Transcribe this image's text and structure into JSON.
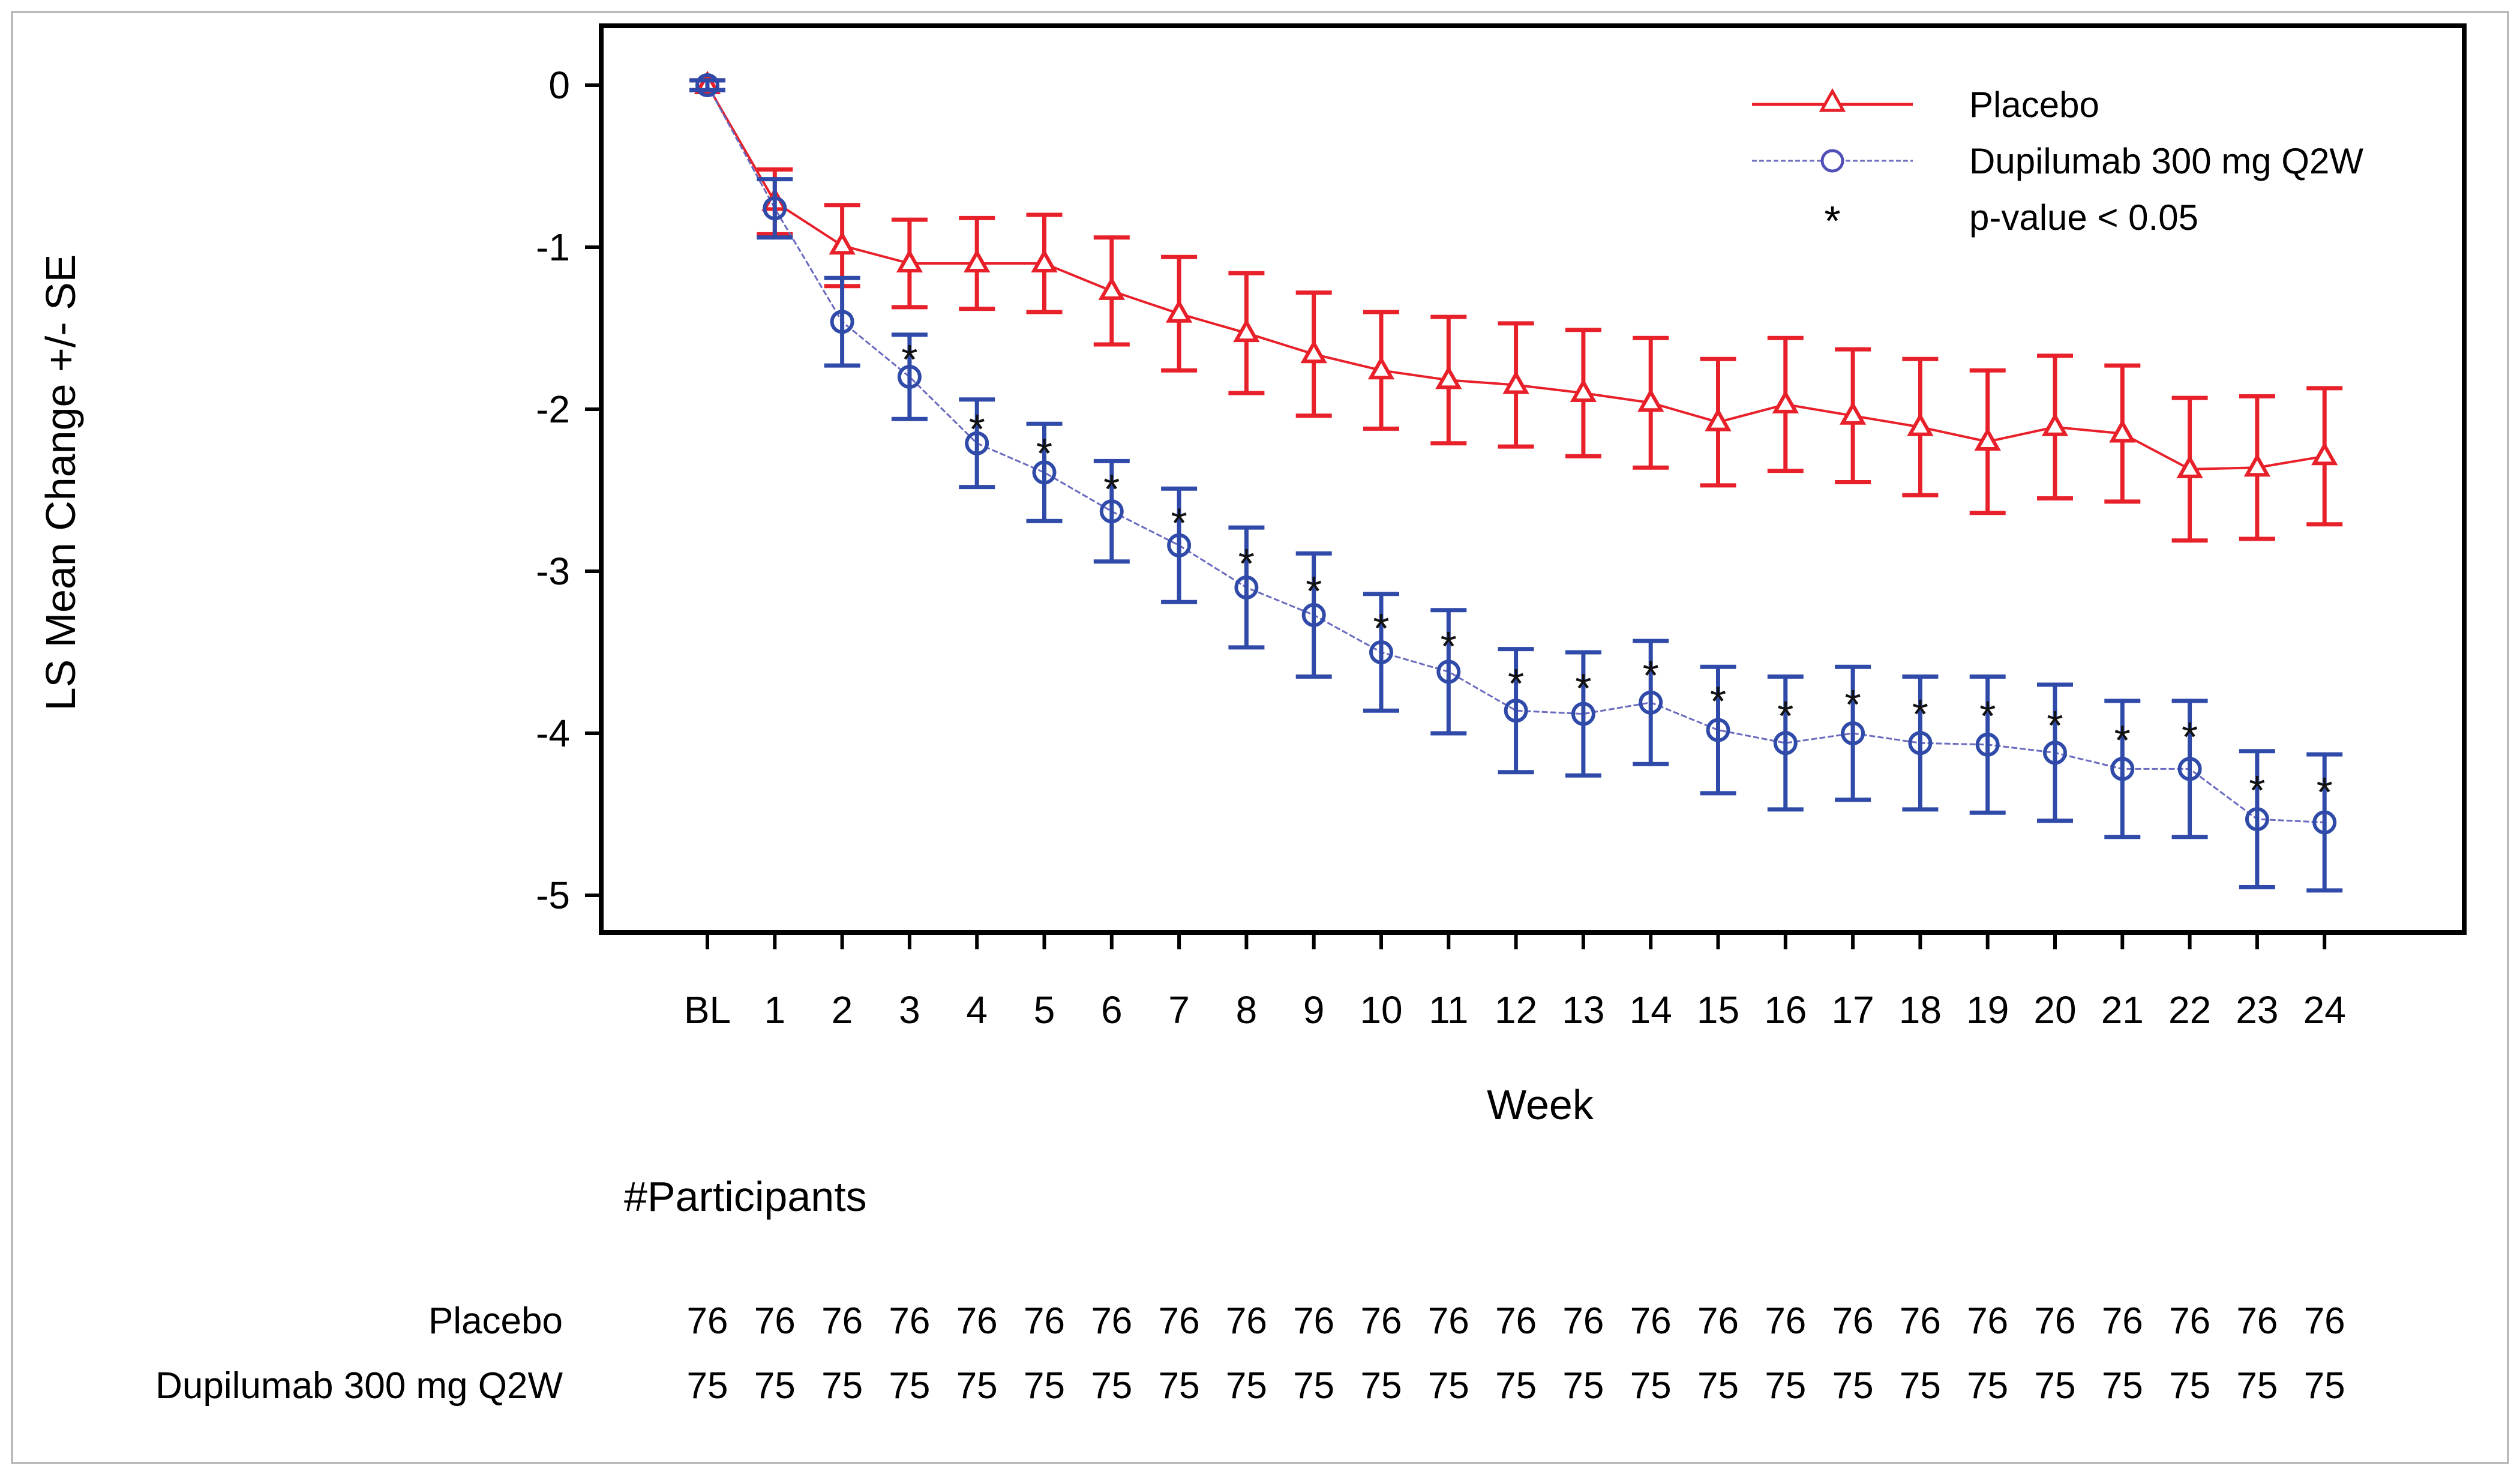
{
  "chart_data": {
    "type": "line",
    "xlabel": "Week",
    "ylabel": "LS Mean Change +/- SE",
    "x_ticks": [
      "BL",
      "1",
      "2",
      "3",
      "4",
      "5",
      "6",
      "7",
      "8",
      "9",
      "10",
      "11",
      "12",
      "13",
      "14",
      "15",
      "16",
      "17",
      "18",
      "19",
      "20",
      "21",
      "22",
      "23",
      "24"
    ],
    "ylim": [
      -5.2,
      0.1
    ],
    "y_ticks": [
      0,
      -1,
      -2,
      -3,
      -4,
      -5
    ],
    "y_tick_labels": [
      "0",
      "-1",
      "-2",
      "-3",
      "-4",
      "-5"
    ],
    "grid": false,
    "legend_position": "top-right",
    "series": [
      {
        "name": "Placebo",
        "color": "#e8202a",
        "marker": "triangle",
        "mean": [
          0,
          -0.72,
          -0.99,
          -1.1,
          -1.1,
          -1.1,
          -1.27,
          -1.41,
          -1.53,
          -1.66,
          -1.76,
          -1.82,
          -1.85,
          -1.9,
          -1.96,
          -2.08,
          -1.97,
          -2.04,
          -2.11,
          -2.2,
          -2.11,
          -2.15,
          -2.37,
          -2.36,
          -2.29
        ],
        "se": [
          0.03,
          0.2,
          0.25,
          0.27,
          0.28,
          0.3,
          0.33,
          0.35,
          0.37,
          0.38,
          0.36,
          0.39,
          0.38,
          0.39,
          0.4,
          0.39,
          0.41,
          0.41,
          0.42,
          0.44,
          0.44,
          0.42,
          0.44,
          0.44,
          0.42
        ]
      },
      {
        "name": "Dupilumab 300 mg Q2W",
        "color": "#2f4aa8",
        "marker": "circle",
        "mean": [
          0,
          -0.76,
          -1.46,
          -1.8,
          -2.21,
          -2.39,
          -2.63,
          -2.84,
          -3.1,
          -3.27,
          -3.5,
          -3.62,
          -3.86,
          -3.88,
          -3.81,
          -3.98,
          -4.06,
          -4.0,
          -4.06,
          -4.07,
          -4.12,
          -4.22,
          -4.22,
          -4.53,
          -4.55
        ],
        "se": [
          0.03,
          0.18,
          0.27,
          0.26,
          0.27,
          0.3,
          0.31,
          0.35,
          0.37,
          0.38,
          0.36,
          0.38,
          0.38,
          0.38,
          0.38,
          0.39,
          0.41,
          0.41,
          0.41,
          0.42,
          0.42,
          0.42,
          0.42,
          0.42,
          0.42
        ]
      }
    ],
    "significance": {
      "label": "p-value < 0.05",
      "weeks": [
        "3",
        "4",
        "5",
        "6",
        "7",
        "8",
        "9",
        "10",
        "11",
        "12",
        "13",
        "14",
        "15",
        "16",
        "17",
        "18",
        "19",
        "20",
        "21",
        "22",
        "23",
        "24"
      ],
      "y": [
        -1.67,
        -2.1,
        -2.25,
        -2.47,
        -2.68,
        -2.93,
        -3.1,
        -3.33,
        -3.44,
        -3.67,
        -3.7,
        -3.62,
        -3.78,
        -3.87,
        -3.8,
        -3.86,
        -3.87,
        -3.93,
        -4.02,
        -4.0,
        -4.33,
        -4.34
      ]
    }
  },
  "participants": {
    "title": "#Participants",
    "rows": [
      {
        "label": "Placebo",
        "counts": [
          "76",
          "76",
          "76",
          "76",
          "76",
          "76",
          "76",
          "76",
          "76",
          "76",
          "76",
          "76",
          "76",
          "76",
          "76",
          "76",
          "76",
          "76",
          "76",
          "76",
          "76",
          "76",
          "76",
          "76",
          "76"
        ]
      },
      {
        "label": "Dupilumab 300 mg Q2W",
        "counts": [
          "75",
          "75",
          "75",
          "75",
          "75",
          "75",
          "75",
          "75",
          "75",
          "75",
          "75",
          "75",
          "75",
          "75",
          "75",
          "75",
          "75",
          "75",
          "75",
          "75",
          "75",
          "75",
          "75",
          "75",
          "75"
        ]
      }
    ]
  }
}
